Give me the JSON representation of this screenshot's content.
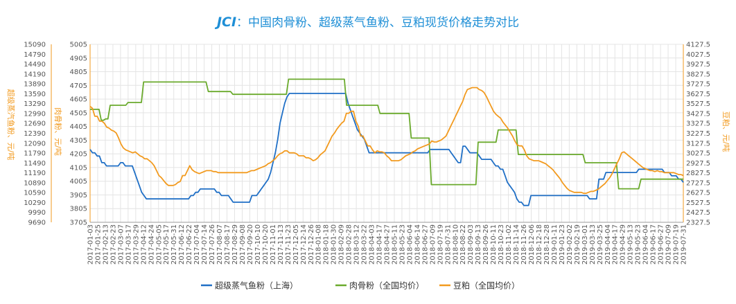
{
  "chart_data": {
    "type": "line",
    "title": {
      "brand": "JCI",
      "text": "：中国肉骨粉、超级蒸气鱼粉、豆粕现货价格走势对比"
    },
    "axes": {
      "left_outer": {
        "label": "超级蒸汽鱼粉、元/吨",
        "ticks": [
          "15090",
          "14790",
          "14490",
          "14190",
          "13890",
          "13590",
          "13290",
          "12990",
          "12690",
          "12390",
          "12090",
          "11790",
          "11490",
          "11190",
          "10890",
          "10590",
          "10290",
          "9990",
          "9690"
        ],
        "range": [
          9690,
          15090
        ]
      },
      "left_inner": {
        "label": "肉骨粉、元/吨",
        "ticks": [
          "5005",
          "4905",
          "4805",
          "4705",
          "4605",
          "4505",
          "4405",
          "4305",
          "4205",
          "4105",
          "4005",
          "3905",
          "3805",
          "3705"
        ],
        "range": [
          3705,
          5005
        ]
      },
      "right": {
        "label": "豆粕、元/吨",
        "ticks": [
          "4127.5",
          "4027.5",
          "3927.5",
          "3827.5",
          "3727.5",
          "3627.5",
          "3527.5",
          "3427.5",
          "3327.5",
          "3227.5",
          "3127.5",
          "3027.5",
          "2927.5",
          "2827.5",
          "2727.5",
          "2627.5",
          "2527.5",
          "2427.5",
          "2327.5"
        ],
        "range": [
          2327.5,
          4127.5
        ]
      },
      "x": {
        "ticks": [
          "2017-01-03",
          "2017-01-25",
          "2017-02-13",
          "2017-02-23",
          "2017-03-07",
          "2017-03-17",
          "2017-03-29",
          "2017-04-12",
          "2017-04-24",
          "2017-05-05",
          "2017-05-17",
          "2017-05-31",
          "2017-06-12",
          "2017-06-22",
          "2017-07-04",
          "2017-07-14",
          "2017-07-26",
          "2017-08-07",
          "2017-08-17",
          "2017-08-29",
          "2017-09-08",
          "2017-09-20",
          "2017-10-10",
          "2017-10-20",
          "2017-11-01",
          "2017-11-13",
          "2017-11-23",
          "2017-12-05",
          "2017-12-14",
          "2017-12-26",
          "2018-01-08",
          "2018-01-18",
          "2018-01-30",
          "2018-02-09",
          "2018-02-28",
          "2018-03-12",
          "2018-03-22",
          "2018-04-03",
          "2018-04-17",
          "2018-04-27",
          "2018-05-11",
          "2018-05-23",
          "2018-06-04",
          "2018-06-14",
          "2018-06-27",
          "2018-07-09",
          "2018-07-19",
          "2018-07-31",
          "2018-08-10",
          "2018-08-22",
          "2018-09-03",
          "2018-09-13",
          "2018-09-26",
          "2018-10-11",
          "2018-10-23",
          "2018-11-02",
          "2018-11-14",
          "2018-11-26",
          "2018-12-06",
          "2018-12-18",
          "2018-12-28",
          "2019-01-11",
          "2019-01-23",
          "2019-02-02",
          "2019-02-19",
          "2019-03-01",
          "2019-03-13",
          "2019-03-25",
          "2019-04-04",
          "2019-04-17",
          "2019-04-29",
          "2019-05-13",
          "2019-05-23",
          "2019-06-04",
          "2019-06-17",
          "2019-06-27",
          "2019-07-09",
          "2019-07-19",
          "2019-07-31"
        ]
      }
    },
    "grid": true,
    "legend_position": "bottom",
    "series": [
      {
        "name": "超级蒸气鱼粉（上海）",
        "color": "#1f6fc6",
        "axis": "left_outer",
        "values": [
          11900,
          11800,
          11800,
          11700,
          11700,
          11500,
          11500,
          11400,
          11400,
          11400,
          11400,
          11400,
          11400,
          11500,
          11500,
          11400,
          11400,
          11400,
          11400,
          11200,
          11000,
          10800,
          10600,
          10500,
          10400,
          10400,
          10400,
          10400,
          10400,
          10400,
          10400,
          10400,
          10400,
          10400,
          10400,
          10400,
          10400,
          10400,
          10400,
          10400,
          10400,
          10400,
          10400,
          10500,
          10500,
          10600,
          10600,
          10700,
          10700,
          10700,
          10700,
          10700,
          10700,
          10700,
          10600,
          10600,
          10500,
          10500,
          10500,
          10500,
          10400,
          10300,
          10300,
          10300,
          10300,
          10300,
          10300,
          10300,
          10300,
          10500,
          10500,
          10500,
          10600,
          10700,
          10800,
          10900,
          11000,
          11200,
          11500,
          11800,
          12200,
          12700,
          13000,
          13300,
          13500,
          13600,
          13600,
          13600,
          13600,
          13600,
          13600,
          13600,
          13600,
          13600,
          13600,
          13600,
          13600,
          13600,
          13600,
          13600,
          13600,
          13600,
          13600,
          13600,
          13600,
          13600,
          13600,
          13600,
          13600,
          13600,
          13300,
          13100,
          12900,
          12700,
          12500,
          12400,
          12300,
          12200,
          12000,
          11800,
          11800,
          11800,
          11800,
          11800,
          11800,
          11800,
          11800,
          11800,
          11800,
          11800,
          11800,
          11800,
          11800,
          11800,
          11800,
          11800,
          11800,
          11800,
          11800,
          11800,
          11800,
          11800,
          11800,
          11800,
          11800,
          11900,
          11900,
          11900,
          11900,
          11900,
          11900,
          11900,
          11900,
          11900,
          11800,
          11700,
          11600,
          11500,
          11500,
          12000,
          12000,
          11900,
          11800,
          11800,
          11800,
          11800,
          11700,
          11600,
          11600,
          11600,
          11600,
          11600,
          11500,
          11400,
          11400,
          11300,
          11300,
          11100,
          10900,
          10800,
          10700,
          10600,
          10400,
          10300,
          10300,
          10200,
          10200,
          10200,
          10500,
          10500,
          10500,
          10500,
          10500,
          10500,
          10500,
          10500,
          10500,
          10500,
          10500,
          10500,
          10500,
          10500,
          10500,
          10500,
          10500,
          10500,
          10500,
          10500,
          10500,
          10500,
          10500,
          10500,
          10500,
          10400,
          10400,
          10400,
          10400,
          11000,
          11000,
          11000,
          11200,
          11200,
          11200,
          11200,
          11200,
          11200,
          11200,
          11200,
          11200,
          11200,
          11200,
          11200,
          11200,
          11200,
          11300,
          11300,
          11300,
          11300,
          11300,
          11300,
          11300,
          11300,
          11300,
          11300,
          11300,
          11200,
          11200,
          11200,
          11100,
          11100,
          11100,
          11000,
          11000,
          10900
        ]
      },
      {
        "name": "肉骨粉（全国均价）",
        "color": "#6aaa2c",
        "axis": "left_inner",
        "values": [
          4530,
          4530,
          4530,
          4530,
          4530,
          4450,
          4450,
          4460,
          4460,
          4560,
          4560,
          4560,
          4560,
          4560,
          4560,
          4560,
          4560,
          4580,
          4580,
          4580,
          4580,
          4580,
          4580,
          4580,
          4730,
          4730,
          4730,
          4730,
          4730,
          4730,
          4730,
          4730,
          4730,
          4730,
          4730,
          4730,
          4730,
          4730,
          4730,
          4730,
          4730,
          4730,
          4730,
          4730,
          4730,
          4730,
          4730,
          4730,
          4730,
          4730,
          4730,
          4730,
          4730,
          4660,
          4660,
          4660,
          4660,
          4660,
          4660,
          4660,
          4660,
          4660,
          4660,
          4660,
          4640,
          4640,
          4640,
          4640,
          4640,
          4640,
          4640,
          4640,
          4640,
          4640,
          4640,
          4640,
          4640,
          4640,
          4640,
          4640,
          4640,
          4640,
          4640,
          4640,
          4640,
          4640,
          4640,
          4640,
          4640,
          4750,
          4750,
          4750,
          4750,
          4750,
          4750,
          4750,
          4750,
          4750,
          4750,
          4750,
          4750,
          4750,
          4750,
          4750,
          4750,
          4750,
          4750,
          4750,
          4750,
          4750,
          4750,
          4750,
          4750,
          4750,
          4750,
          4560,
          4560,
          4560,
          4560,
          4560,
          4560,
          4560,
          4560,
          4560,
          4560,
          4560,
          4560,
          4560,
          4560,
          4560,
          4500,
          4500,
          4500,
          4500,
          4500,
          4500,
          4500,
          4500,
          4500,
          4500,
          4500,
          4500,
          4500,
          4500,
          4320,
          4320,
          4320,
          4320,
          4320,
          4320,
          4320,
          4320,
          4320,
          3980,
          3980,
          3980,
          3980,
          3980,
          3980,
          3980,
          3980,
          3980,
          3980,
          3980,
          3980,
          3980,
          3980,
          3980,
          3980,
          3980,
          3980,
          3980,
          3980,
          3980,
          4290,
          4290,
          4290,
          4290,
          4290,
          4290,
          4290,
          4290,
          4290,
          4380,
          4380,
          4380,
          4380,
          4380,
          4380,
          4380,
          4380,
          4380,
          4200,
          4200,
          4200,
          4200,
          4200,
          4200,
          4200,
          4200,
          4200,
          4200,
          4200,
          4200,
          4200,
          4200,
          4200,
          4200,
          4200,
          4200,
          4200,
          4200,
          4200,
          4200,
          4200,
          4200,
          4200,
          4200,
          4200,
          4200,
          4200,
          4200,
          4140,
          4140,
          4140,
          4140,
          4140,
          4140,
          4140,
          4140,
          4140,
          4140,
          4140,
          4140,
          4140,
          4140,
          4140,
          3950,
          3950,
          3950,
          3950,
          3950,
          3950,
          3950,
          3950,
          3950,
          3950,
          4020,
          4020,
          4020,
          4020,
          4020,
          4020,
          4020,
          4020,
          4020,
          4020,
          4020,
          4020,
          4020,
          4020,
          4020,
          4020,
          4020,
          4020,
          4020,
          4020
        ]
      },
      {
        "name": "豆粕（全国均价）",
        "color": "#f29a1e",
        "axis": "right",
        "values": [
          3500,
          3480,
          3400,
          3400,
          3350,
          3350,
          3330,
          3290,
          3280,
          3260,
          3250,
          3230,
          3180,
          3120,
          3080,
          3060,
          3050,
          3040,
          3030,
          3040,
          3020,
          3000,
          2990,
          2970,
          2970,
          2950,
          2930,
          2900,
          2850,
          2800,
          2780,
          2750,
          2720,
          2700,
          2700,
          2700,
          2710,
          2730,
          2740,
          2800,
          2800,
          2850,
          2900,
          2860,
          2840,
          2830,
          2820,
          2830,
          2840,
          2850,
          2850,
          2850,
          2840,
          2840,
          2830,
          2830,
          2830,
          2830,
          2830,
          2830,
          2830,
          2830,
          2830,
          2830,
          2830,
          2830,
          2830,
          2840,
          2850,
          2850,
          2860,
          2870,
          2880,
          2890,
          2900,
          2920,
          2930,
          2950,
          2970,
          3000,
          3020,
          3030,
          3050,
          3050,
          3030,
          3030,
          3030,
          3020,
          3000,
          3000,
          3000,
          2980,
          2980,
          2970,
          2950,
          2960,
          2980,
          3010,
          3030,
          3050,
          3100,
          3150,
          3200,
          3230,
          3270,
          3300,
          3330,
          3350,
          3430,
          3430,
          3450,
          3450,
          3350,
          3300,
          3200,
          3200,
          3150,
          3100,
          3100,
          3060,
          3030,
          3050,
          3040,
          3040,
          3030,
          3000,
          2980,
          2950,
          2950,
          2950,
          2950,
          2960,
          2980,
          3000,
          3010,
          3020,
          3040,
          3050,
          3070,
          3080,
          3090,
          3100,
          3110,
          3120,
          3150,
          3140,
          3140,
          3150,
          3160,
          3180,
          3200,
          3250,
          3300,
          3350,
          3400,
          3450,
          3500,
          3550,
          3620,
          3670,
          3680,
          3690,
          3690,
          3690,
          3670,
          3660,
          3640,
          3600,
          3550,
          3500,
          3450,
          3420,
          3400,
          3380,
          3340,
          3310,
          3280,
          3240,
          3200,
          3150,
          3110,
          3100,
          3100,
          3060,
          3000,
          2970,
          2960,
          2950,
          2950,
          2950,
          2940,
          2930,
          2920,
          2900,
          2880,
          2860,
          2830,
          2800,
          2770,
          2730,
          2700,
          2670,
          2650,
          2640,
          2630,
          2630,
          2630,
          2630,
          2620,
          2620,
          2630,
          2640,
          2640,
          2650,
          2660,
          2680,
          2700,
          2720,
          2750,
          2780,
          2820,
          2870,
          2920,
          2970,
          3030,
          3040,
          3020,
          3000,
          2980,
          2960,
          2940,
          2920,
          2900,
          2880,
          2870,
          2860,
          2850,
          2850,
          2840,
          2850,
          2840,
          2840,
          2830,
          2830,
          2830,
          2830,
          2830,
          2820,
          2810,
          2810,
          2800
        ]
      }
    ]
  }
}
